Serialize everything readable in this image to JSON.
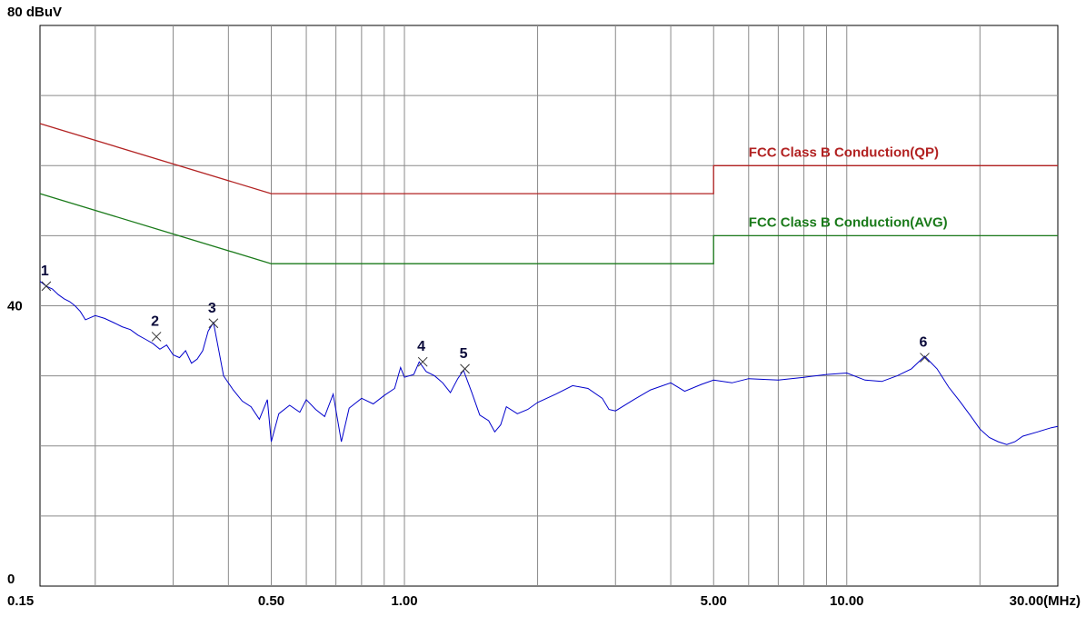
{
  "chart_data": {
    "type": "line",
    "title": "",
    "x_scale": "log",
    "xlim": [
      0.15,
      30
    ],
    "ylim": [
      0,
      80
    ],
    "grid": true,
    "y_tick_labels": [
      {
        "value": 80,
        "label": "80 dBuV"
      },
      {
        "value": 40,
        "label": "40"
      },
      {
        "value": 0,
        "label": "0"
      }
    ],
    "x_tick_labels": [
      {
        "value": 0.15,
        "label": "0.15"
      },
      {
        "value": 0.5,
        "label": "0.50"
      },
      {
        "value": 1.0,
        "label": "1.00"
      },
      {
        "value": 5.0,
        "label": "5.00"
      },
      {
        "value": 10.0,
        "label": "10.00"
      },
      {
        "value": 30.0,
        "label": "30.00(MHz)"
      }
    ],
    "limit_lines": [
      {
        "name": "FCC Class B Conduction(QP)",
        "color": "#b22222",
        "points": [
          [
            0.15,
            66
          ],
          [
            0.5,
            56
          ],
          [
            5.0,
            56
          ],
          [
            5.0,
            60
          ],
          [
            30.0,
            60
          ]
        ]
      },
      {
        "name": "FCC Class B Conduction(AVG)",
        "color": "#1a7a1a",
        "points": [
          [
            0.15,
            56
          ],
          [
            0.5,
            46
          ],
          [
            5.0,
            46
          ],
          [
            5.0,
            50
          ],
          [
            30.0,
            50
          ]
        ]
      }
    ],
    "series": [
      {
        "color": "#0000cc",
        "points": [
          [
            0.15,
            43.5
          ],
          [
            0.155,
            42.8
          ],
          [
            0.16,
            42.4
          ],
          [
            0.165,
            41.6
          ],
          [
            0.17,
            41.0
          ],
          [
            0.175,
            40.6
          ],
          [
            0.18,
            40.0
          ],
          [
            0.185,
            39.2
          ],
          [
            0.19,
            38.0
          ],
          [
            0.2,
            38.6
          ],
          [
            0.21,
            38.2
          ],
          [
            0.22,
            37.6
          ],
          [
            0.23,
            37.0
          ],
          [
            0.24,
            36.6
          ],
          [
            0.25,
            35.8
          ],
          [
            0.26,
            35.2
          ],
          [
            0.27,
            34.6
          ],
          [
            0.28,
            33.8
          ],
          [
            0.29,
            34.4
          ],
          [
            0.3,
            33.0
          ],
          [
            0.31,
            32.6
          ],
          [
            0.32,
            33.6
          ],
          [
            0.33,
            31.8
          ],
          [
            0.34,
            32.4
          ],
          [
            0.35,
            33.6
          ],
          [
            0.36,
            36.4
          ],
          [
            0.37,
            37.6
          ],
          [
            0.38,
            33.8
          ],
          [
            0.39,
            30.0
          ],
          [
            0.41,
            28.0
          ],
          [
            0.43,
            26.4
          ],
          [
            0.45,
            25.6
          ],
          [
            0.47,
            23.8
          ],
          [
            0.49,
            26.6
          ],
          [
            0.5,
            20.6
          ],
          [
            0.52,
            24.6
          ],
          [
            0.55,
            25.8
          ],
          [
            0.58,
            24.8
          ],
          [
            0.6,
            26.6
          ],
          [
            0.63,
            25.2
          ],
          [
            0.66,
            24.2
          ],
          [
            0.69,
            27.4
          ],
          [
            0.72,
            20.6
          ],
          [
            0.75,
            25.4
          ],
          [
            0.8,
            26.8
          ],
          [
            0.85,
            26.0
          ],
          [
            0.9,
            27.2
          ],
          [
            0.95,
            28.2
          ],
          [
            0.98,
            31.2
          ],
          [
            1.0,
            29.8
          ],
          [
            1.05,
            30.2
          ],
          [
            1.08,
            32.0
          ],
          [
            1.12,
            30.6
          ],
          [
            1.17,
            30.0
          ],
          [
            1.22,
            29.0
          ],
          [
            1.27,
            27.6
          ],
          [
            1.32,
            29.6
          ],
          [
            1.36,
            30.8
          ],
          [
            1.42,
            27.6
          ],
          [
            1.48,
            24.4
          ],
          [
            1.55,
            23.6
          ],
          [
            1.6,
            22.0
          ],
          [
            1.65,
            23.0
          ],
          [
            1.7,
            25.6
          ],
          [
            1.8,
            24.6
          ],
          [
            1.9,
            25.2
          ],
          [
            2.0,
            26.2
          ],
          [
            2.2,
            27.4
          ],
          [
            2.4,
            28.6
          ],
          [
            2.6,
            28.2
          ],
          [
            2.8,
            26.8
          ],
          [
            2.9,
            25.2
          ],
          [
            3.0,
            25.0
          ],
          [
            3.3,
            26.6
          ],
          [
            3.6,
            28.0
          ],
          [
            4.0,
            29.0
          ],
          [
            4.3,
            27.8
          ],
          [
            4.7,
            28.8
          ],
          [
            5.0,
            29.4
          ],
          [
            5.5,
            29.0
          ],
          [
            6.0,
            29.6
          ],
          [
            7.0,
            29.4
          ],
          [
            8.0,
            29.8
          ],
          [
            9.0,
            30.2
          ],
          [
            10.0,
            30.4
          ],
          [
            11.0,
            29.4
          ],
          [
            12.0,
            29.2
          ],
          [
            13.0,
            30.0
          ],
          [
            14.0,
            31.0
          ],
          [
            15.0,
            32.8
          ],
          [
            16.0,
            31.0
          ],
          [
            17.0,
            28.4
          ],
          [
            18.0,
            26.4
          ],
          [
            19.0,
            24.4
          ],
          [
            20.0,
            22.4
          ],
          [
            21.0,
            21.2
          ],
          [
            22.0,
            20.6
          ],
          [
            23.0,
            20.2
          ],
          [
            24.0,
            20.6
          ],
          [
            25.0,
            21.4
          ],
          [
            27.0,
            22.0
          ],
          [
            29.0,
            22.6
          ],
          [
            30.0,
            22.8
          ]
        ]
      }
    ],
    "markers": [
      {
        "label": "1",
        "x": 0.155,
        "y": 42.8
      },
      {
        "label": "2",
        "x": 0.275,
        "y": 35.6
      },
      {
        "label": "3",
        "x": 0.37,
        "y": 37.5
      },
      {
        "label": "4",
        "x": 1.1,
        "y": 32.0
      },
      {
        "label": "5",
        "x": 1.37,
        "y": 31.0
      },
      {
        "label": "6",
        "x": 15.0,
        "y": 32.6
      }
    ]
  }
}
